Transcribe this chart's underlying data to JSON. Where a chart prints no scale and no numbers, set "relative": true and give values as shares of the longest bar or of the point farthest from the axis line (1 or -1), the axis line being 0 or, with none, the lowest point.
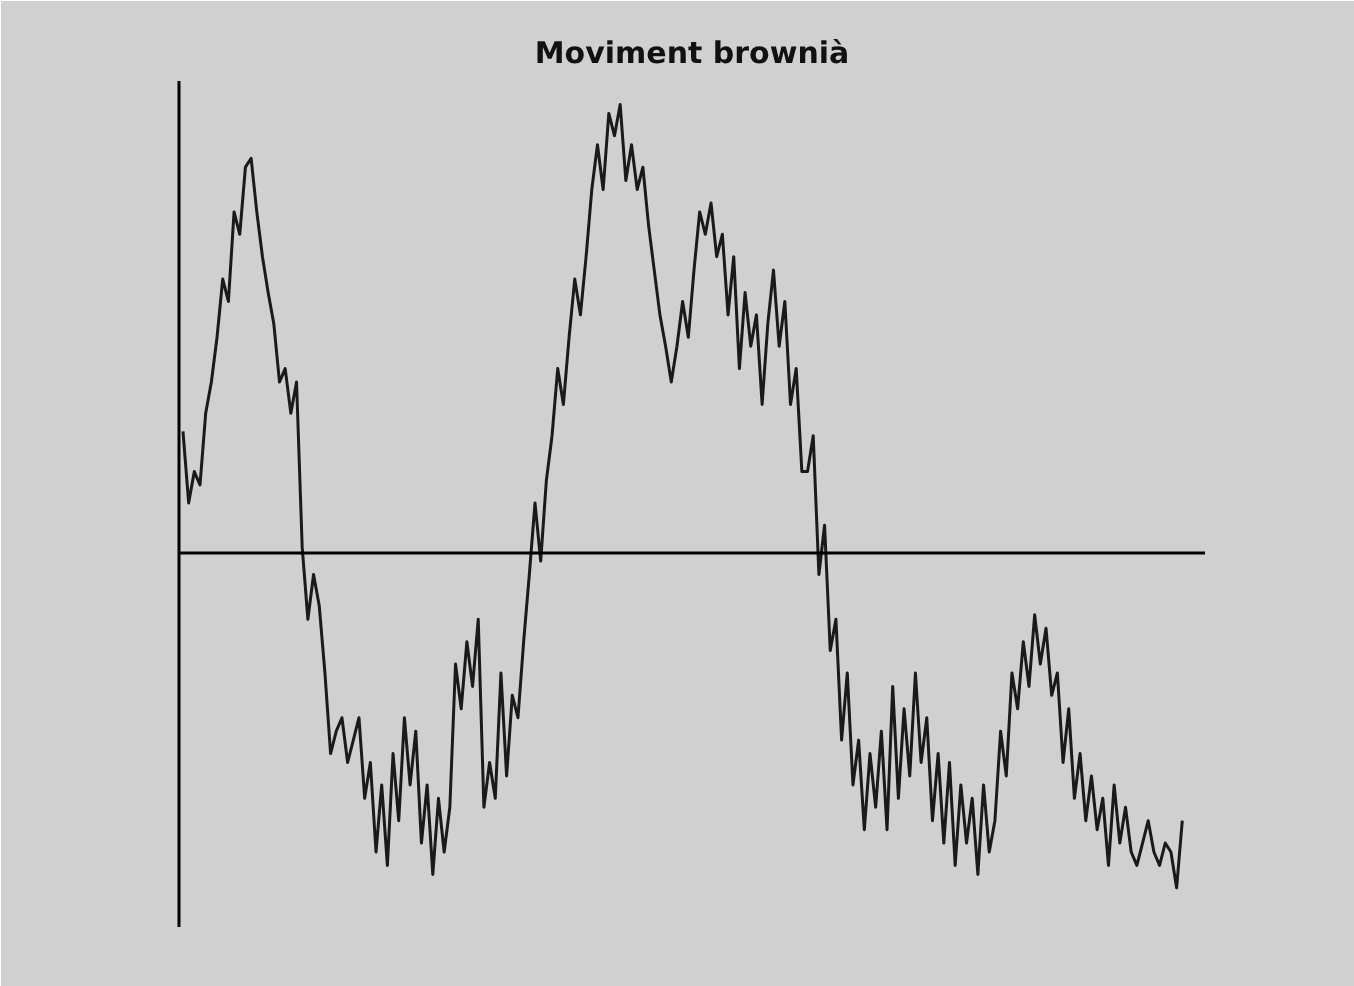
{
  "chart_data": {
    "type": "line",
    "title": "Moviment brownià",
    "relative": true,
    "color": "#1a1a1a",
    "categories": [
      null,
      null,
      null,
      null,
      null,
      null,
      null,
      null,
      null,
      null,
      null,
      null,
      null,
      null,
      null,
      null,
      null,
      null,
      null,
      null,
      null,
      null,
      null,
      null,
      null,
      null,
      null,
      null,
      null,
      null,
      null,
      null,
      null,
      null,
      null,
      null,
      null,
      null,
      null,
      null,
      null,
      null,
      null,
      null,
      null,
      null,
      null,
      null,
      null,
      null,
      null,
      null,
      null,
      null,
      null,
      null,
      null,
      null,
      null,
      null,
      null,
      null,
      null,
      null,
      null,
      null,
      null,
      null,
      null,
      null,
      null,
      null,
      null,
      null,
      null,
      null,
      null,
      null,
      null,
      null,
      null,
      null,
      null,
      null,
      null,
      null,
      null,
      null,
      null,
      null,
      null,
      null,
      null,
      null,
      null,
      null,
      null,
      null,
      null,
      null,
      null,
      null,
      null,
      null,
      null,
      null,
      null,
      null,
      null,
      null,
      null,
      null,
      null,
      null,
      null,
      null,
      null,
      null,
      null,
      null,
      null,
      null,
      null,
      null,
      null,
      null,
      null,
      null,
      null,
      null,
      null,
      null,
      null,
      null,
      null,
      null,
      null,
      null,
      null,
      null,
      null,
      null,
      null,
      null,
      null,
      null,
      null,
      null,
      null,
      null,
      null,
      null,
      null,
      null,
      null,
      null,
      null,
      null,
      null,
      null,
      null,
      null,
      null,
      null,
      null,
      null,
      null,
      null,
      null,
      null,
      null,
      null,
      null,
      null,
      null,
      null,
      null
    ],
    "values": [
      0.27,
      0.11,
      0.18,
      0.15,
      0.31,
      0.38,
      0.48,
      0.61,
      0.56,
      0.76,
      0.71,
      0.86,
      0.88,
      0.76,
      0.66,
      0.58,
      0.51,
      0.38,
      0.41,
      0.31,
      0.38,
      0.01,
      -0.15,
      -0.05,
      -0.12,
      -0.27,
      -0.45,
      -0.4,
      -0.37,
      -0.47,
      -0.42,
      -0.37,
      -0.55,
      -0.47,
      -0.67,
      -0.52,
      -0.7,
      -0.45,
      -0.6,
      -0.37,
      -0.52,
      -0.4,
      -0.65,
      -0.52,
      -0.72,
      -0.55,
      -0.67,
      -0.57,
      -0.25,
      -0.35,
      -0.2,
      -0.3,
      -0.15,
      -0.57,
      -0.47,
      -0.55,
      -0.27,
      -0.5,
      -0.32,
      -0.37,
      -0.2,
      -0.05,
      0.11,
      -0.02,
      0.16,
      0.26,
      0.41,
      0.33,
      0.48,
      0.61,
      0.53,
      0.66,
      0.81,
      0.91,
      0.81,
      0.98,
      0.93,
      1,
      0.83,
      0.91,
      0.81,
      0.86,
      0.73,
      0.63,
      0.53,
      0.46,
      0.38,
      0.46,
      0.56,
      0.48,
      0.63,
      0.76,
      0.71,
      0.78,
      0.66,
      0.71,
      0.53,
      0.66,
      0.41,
      0.58,
      0.46,
      0.53,
      0.33,
      0.51,
      0.63,
      0.46,
      0.56,
      0.33,
      0.41,
      0.18,
      0.18,
      0.26,
      -0.05,
      0.06,
      -0.22,
      -0.15,
      -0.42,
      -0.27,
      -0.52,
      -0.42,
      -0.62,
      -0.45,
      -0.57,
      -0.4,
      -0.62,
      -0.3,
      -0.55,
      -0.35,
      -0.5,
      -0.27,
      -0.47,
      -0.37,
      -0.6,
      -0.45,
      -0.65,
      -0.47,
      -0.7,
      -0.52,
      -0.65,
      -0.55,
      -0.72,
      -0.52,
      -0.67,
      -0.6,
      -0.4,
      -0.5,
      -0.27,
      -0.35,
      -0.2,
      -0.3,
      -0.14,
      -0.25,
      -0.17,
      -0.32,
      -0.27,
      -0.47,
      -0.35,
      -0.55,
      -0.45,
      -0.6,
      -0.5,
      -0.62,
      -0.55,
      -0.7,
      -0.52,
      -0.65,
      -0.57,
      -0.67,
      -0.7,
      -0.65,
      -0.6,
      -0.67,
      -0.7,
      -0.65,
      -0.67,
      -0.75,
      -0.6
    ]
  }
}
